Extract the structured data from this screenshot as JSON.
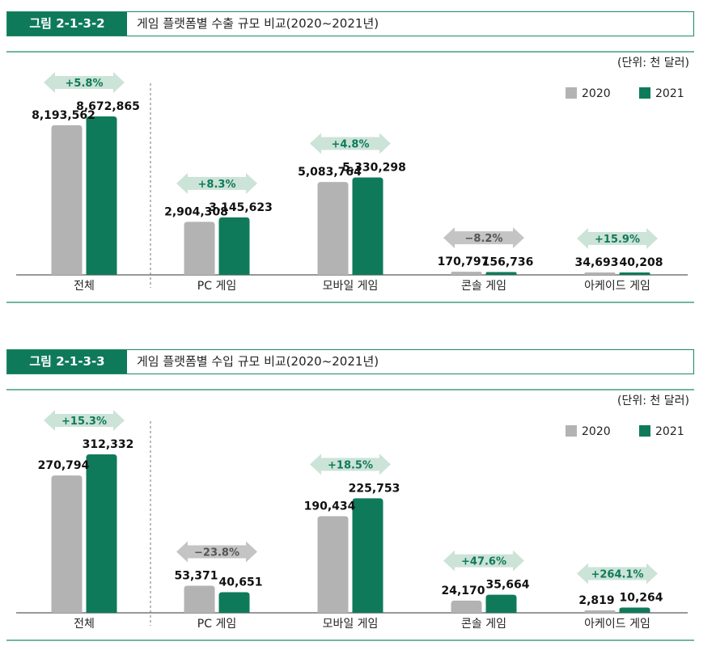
{
  "figures": [
    {
      "label": "그림 2-1-3-2",
      "title": "게임 플랫폼별 수출 규모 비교(2020~2021년)",
      "unit": "(단위: 천 달러)",
      "colors": {
        "y2020": "#b3b3b3",
        "y2021": "#0f7a5a",
        "up_arrow": "#cce3d8",
        "down_arrow": "#c4c4c4",
        "up_text": "#0f7a5a",
        "down_text": "#555555",
        "rule": "#1e8a66"
      },
      "chart_data": {
        "type": "bar",
        "categories": [
          "전체",
          "PC 게임",
          "모바일 게임",
          "콘솔 게임",
          "아케이드 게임"
        ],
        "series": [
          {
            "name": "2020",
            "values": [
              8193562,
              2904308,
              5083764,
              170797,
              34693
            ],
            "labels": [
              "8,193,562",
              "2,904,308",
              "5,083,764",
              "170,797",
              "34,693"
            ]
          },
          {
            "name": "2021",
            "values": [
              8672865,
              3145623,
              5330298,
              156736,
              40208
            ],
            "labels": [
              "8,672,865",
              "3,145,623",
              "5,330,298",
              "156,736",
              "40,208"
            ]
          }
        ],
        "changes": [
          "+5.8%",
          "+8.3%",
          "+4.8%",
          "−8.2%",
          "+15.9%"
        ],
        "change_direction": [
          "up",
          "up",
          "up",
          "down",
          "up"
        ],
        "legend_position": "top-right",
        "grid": false
      }
    },
    {
      "label": "그림 2-1-3-3",
      "title": "게임 플랫폼별 수입 규모 비교(2020~2021년)",
      "unit": "(단위: 천 달러)",
      "colors": {
        "y2020": "#b3b3b3",
        "y2021": "#0f7a5a",
        "up_arrow": "#cce3d8",
        "down_arrow": "#c4c4c4",
        "up_text": "#0f7a5a",
        "down_text": "#555555",
        "rule": "#1e8a66"
      },
      "chart_data": {
        "type": "bar",
        "categories": [
          "전체",
          "PC 게임",
          "모바일 게임",
          "콘솔 게임",
          "아케이드 게임"
        ],
        "series": [
          {
            "name": "2020",
            "values": [
              270794,
              53371,
              190434,
              24170,
              2819
            ],
            "labels": [
              "270,794",
              "53,371",
              "190,434",
              "24,170",
              "2,819"
            ]
          },
          {
            "name": "2021",
            "values": [
              312332,
              40651,
              225753,
              35664,
              10264
            ],
            "labels": [
              "312,332",
              "40,651",
              "225,753",
              "35,664",
              "10,264"
            ]
          }
        ],
        "changes": [
          "+15.3%",
          "−23.8%",
          "+18.5%",
          "+47.6%",
          "+264.1%"
        ],
        "change_direction": [
          "up",
          "down",
          "up",
          "up",
          "up"
        ],
        "legend_position": "top-right",
        "grid": false
      }
    }
  ]
}
